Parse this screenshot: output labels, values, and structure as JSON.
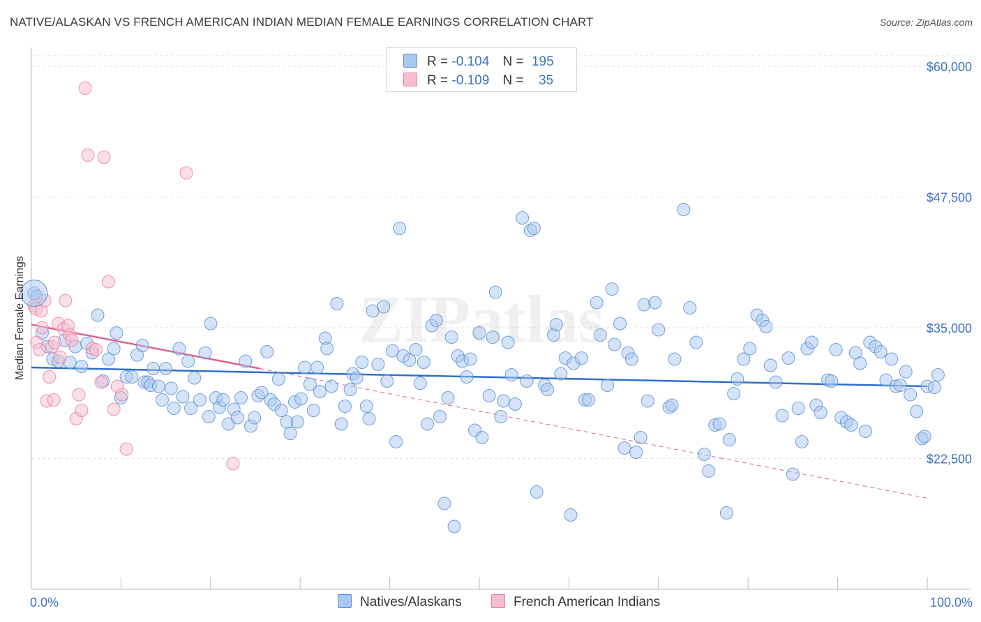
{
  "title": "NATIVE/ALASKAN VS FRENCH AMERICAN INDIAN MEDIAN FEMALE EARNINGS CORRELATION CHART",
  "source": "Source: ZipAtlas.com",
  "watermark": "ZIPatlas",
  "legend": {
    "series1": {
      "r_label": "R =",
      "r_value": "-0.104",
      "n_label": "N =",
      "n_value": "195"
    },
    "series2": {
      "r_label": "R =",
      "r_value": "-0.109",
      "n_label": "N =",
      "n_value": "35"
    }
  },
  "bottom_legend": {
    "series1": "Natives/Alaskans",
    "series2": "French American Indians"
  },
  "colors": {
    "blue_fill": "#a9c8ef",
    "blue_stroke": "#5b8fd6",
    "blue_line": "#2f6fca",
    "pink_fill": "#f6bfd0",
    "pink_stroke": "#e87fa0",
    "pink_line": "#e0608f",
    "tick_text": "#3d72c4",
    "grid": "#e2e2e2"
  },
  "chart_data": {
    "type": "scatter",
    "title": "NATIVE/ALASKAN VS FRENCH AMERICAN INDIAN MEDIAN FEMALE EARNINGS CORRELATION CHART",
    "xlabel": "",
    "ylabel": "Median Female Earnings",
    "xlim": [
      0,
      100
    ],
    "ylim": [
      10000,
      61000
    ],
    "x_tick_labels": [
      "0.0%",
      "100.0%"
    ],
    "y_ticks": [
      22500,
      35000,
      47500,
      60000
    ],
    "y_tick_labels": [
      "$22,500",
      "$35,000",
      "$47,500",
      "$60,000"
    ],
    "series": [
      {
        "name": "Natives/Alaskans",
        "r": -0.104,
        "n": 195,
        "trend": {
          "x": [
            0,
            100
          ],
          "y": [
            31200,
            29400
          ],
          "style": "solid"
        },
        "points": [
          [
            0.3,
            38300
          ],
          [
            0.6,
            38000
          ],
          [
            1.2,
            34500
          ],
          [
            1.8,
            33200
          ],
          [
            2.4,
            32000
          ],
          [
            3.0,
            31800
          ],
          [
            3.7,
            33800
          ],
          [
            4.3,
            31700
          ],
          [
            4.9,
            33200
          ],
          [
            5.6,
            31300
          ],
          [
            6.2,
            33500
          ],
          [
            6.8,
            32600
          ],
          [
            7.4,
            36200
          ],
          [
            8.0,
            29900
          ],
          [
            8.6,
            32000
          ],
          [
            9.2,
            33000
          ],
          [
            9.5,
            34500
          ],
          [
            10.0,
            28300
          ],
          [
            10.6,
            30300
          ],
          [
            11.2,
            30300
          ],
          [
            11.8,
            32400
          ],
          [
            12.4,
            33300
          ],
          [
            12.6,
            29800
          ],
          [
            13.0,
            29800
          ],
          [
            13.3,
            29500
          ],
          [
            13.6,
            31100
          ],
          [
            14.2,
            29400
          ],
          [
            14.6,
            28100
          ],
          [
            15.0,
            31100
          ],
          [
            15.6,
            29200
          ],
          [
            15.9,
            27300
          ],
          [
            16.5,
            33000
          ],
          [
            16.9,
            28400
          ],
          [
            17.5,
            31800
          ],
          [
            17.8,
            27300
          ],
          [
            18.2,
            30200
          ],
          [
            18.8,
            28100
          ],
          [
            19.4,
            32600
          ],
          [
            19.8,
            26500
          ],
          [
            20.0,
            35400
          ],
          [
            20.6,
            28300
          ],
          [
            21.0,
            27400
          ],
          [
            21.4,
            28100
          ],
          [
            22.0,
            25800
          ],
          [
            22.6,
            27200
          ],
          [
            23.0,
            26400
          ],
          [
            23.4,
            28300
          ],
          [
            23.9,
            31800
          ],
          [
            24.5,
            25600
          ],
          [
            24.9,
            26400
          ],
          [
            25.3,
            28500
          ],
          [
            25.7,
            28800
          ],
          [
            26.3,
            32700
          ],
          [
            26.7,
            28100
          ],
          [
            27.1,
            27700
          ],
          [
            27.6,
            30100
          ],
          [
            27.9,
            27100
          ],
          [
            28.5,
            26000
          ],
          [
            28.9,
            24900
          ],
          [
            29.4,
            27900
          ],
          [
            29.7,
            26000
          ],
          [
            30.1,
            28200
          ],
          [
            30.5,
            31200
          ],
          [
            31.1,
            29600
          ],
          [
            31.5,
            27100
          ],
          [
            31.9,
            31200
          ],
          [
            32.2,
            28900
          ],
          [
            32.8,
            34000
          ],
          [
            33.0,
            33000
          ],
          [
            33.5,
            29400
          ],
          [
            34.1,
            37300
          ],
          [
            34.6,
            25800
          ],
          [
            35.0,
            27500
          ],
          [
            35.6,
            29100
          ],
          [
            35.9,
            30600
          ],
          [
            36.3,
            30200
          ],
          [
            36.9,
            31700
          ],
          [
            37.4,
            27500
          ],
          [
            37.7,
            26300
          ],
          [
            38.1,
            36600
          ],
          [
            38.7,
            31500
          ],
          [
            39.3,
            37000
          ],
          [
            39.7,
            29900
          ],
          [
            40.3,
            32800
          ],
          [
            40.7,
            24100
          ],
          [
            41.1,
            44500
          ],
          [
            41.5,
            32300
          ],
          [
            42.2,
            31900
          ],
          [
            42.9,
            32900
          ],
          [
            43.4,
            29700
          ],
          [
            43.8,
            31700
          ],
          [
            44.2,
            25800
          ],
          [
            44.7,
            35200
          ],
          [
            45.2,
            35700
          ],
          [
            45.6,
            26500
          ],
          [
            46.1,
            18200
          ],
          [
            46.5,
            28300
          ],
          [
            46.9,
            34100
          ],
          [
            47.2,
            16000
          ],
          [
            47.6,
            32300
          ],
          [
            48.1,
            31800
          ],
          [
            48.6,
            30300
          ],
          [
            49.0,
            32000
          ],
          [
            49.5,
            25200
          ],
          [
            50.0,
            34500
          ],
          [
            50.3,
            24500
          ],
          [
            51.1,
            28500
          ],
          [
            51.5,
            34100
          ],
          [
            51.8,
            38400
          ],
          [
            52.4,
            26500
          ],
          [
            52.7,
            28000
          ],
          [
            53.2,
            33600
          ],
          [
            53.6,
            30500
          ],
          [
            54.0,
            27700
          ],
          [
            54.8,
            45500
          ],
          [
            55.3,
            29900
          ],
          [
            55.7,
            44300
          ],
          [
            56.1,
            44500
          ],
          [
            56.4,
            19300
          ],
          [
            57.3,
            29500
          ],
          [
            57.6,
            29100
          ],
          [
            58.3,
            34300
          ],
          [
            58.6,
            35300
          ],
          [
            59.1,
            30600
          ],
          [
            59.6,
            32100
          ],
          [
            60.2,
            17100
          ],
          [
            60.5,
            31600
          ],
          [
            61.4,
            32100
          ],
          [
            61.8,
            28100
          ],
          [
            62.2,
            28100
          ],
          [
            63.1,
            37400
          ],
          [
            63.5,
            34300
          ],
          [
            64.3,
            29500
          ],
          [
            64.8,
            38700
          ],
          [
            65.1,
            33400
          ],
          [
            65.7,
            35400
          ],
          [
            66.2,
            23500
          ],
          [
            66.6,
            32600
          ],
          [
            67.0,
            32000
          ],
          [
            67.5,
            23100
          ],
          [
            68.0,
            24500
          ],
          [
            68.4,
            37200
          ],
          [
            68.8,
            28000
          ],
          [
            69.6,
            37400
          ],
          [
            70.0,
            34800
          ],
          [
            71.2,
            27400
          ],
          [
            71.5,
            27600
          ],
          [
            71.8,
            32000
          ],
          [
            72.8,
            46300
          ],
          [
            73.5,
            36900
          ],
          [
            74.2,
            33600
          ],
          [
            75.1,
            22900
          ],
          [
            75.6,
            21300
          ],
          [
            76.3,
            25700
          ],
          [
            76.8,
            25800
          ],
          [
            77.6,
            17300
          ],
          [
            77.9,
            24300
          ],
          [
            78.4,
            28700
          ],
          [
            78.8,
            30100
          ],
          [
            79.5,
            32000
          ],
          [
            80.2,
            33000
          ],
          [
            81.0,
            36200
          ],
          [
            81.6,
            35700
          ],
          [
            82.0,
            35100
          ],
          [
            82.5,
            31400
          ],
          [
            83.1,
            29800
          ],
          [
            83.8,
            26600
          ],
          [
            84.5,
            32100
          ],
          [
            85.0,
            21000
          ],
          [
            85.6,
            27300
          ],
          [
            86.0,
            24100
          ],
          [
            86.6,
            33000
          ],
          [
            87.1,
            33600
          ],
          [
            87.6,
            27600
          ],
          [
            88.1,
            26900
          ],
          [
            88.9,
            30000
          ],
          [
            89.3,
            29900
          ],
          [
            89.8,
            32900
          ],
          [
            90.4,
            26400
          ],
          [
            91.0,
            26000
          ],
          [
            91.5,
            25700
          ],
          [
            92.0,
            32600
          ],
          [
            92.5,
            31600
          ],
          [
            93.1,
            25100
          ],
          [
            93.6,
            33600
          ],
          [
            94.2,
            33200
          ],
          [
            94.8,
            32700
          ],
          [
            95.4,
            30000
          ],
          [
            96.0,
            32000
          ],
          [
            96.5,
            29400
          ],
          [
            97.0,
            29500
          ],
          [
            97.6,
            30800
          ],
          [
            98.1,
            28600
          ],
          [
            98.8,
            27000
          ],
          [
            99.4,
            24400
          ],
          [
            99.7,
            24600
          ],
          [
            100.0,
            29400
          ],
          [
            100.8,
            29300
          ],
          [
            101.2,
            30500
          ]
        ]
      },
      {
        "name": "French American Indians",
        "r": -0.109,
        "n": 35,
        "trend": {
          "x": [
            0,
            25.5
          ],
          "y": [
            35300,
            31100
          ],
          "style": "solid",
          "extended": {
            "x": [
              25.5,
              100
            ],
            "y": [
              31100,
              18700
            ],
            "style": "dashed"
          }
        },
        "points": [
          [
            0.3,
            37100
          ],
          [
            0.5,
            36800
          ],
          [
            0.6,
            33600
          ],
          [
            0.9,
            32900
          ],
          [
            1.1,
            36600
          ],
          [
            1.2,
            35000
          ],
          [
            1.5,
            37600
          ],
          [
            1.7,
            28000
          ],
          [
            2.0,
            30300
          ],
          [
            2.3,
            33200
          ],
          [
            2.5,
            28100
          ],
          [
            2.6,
            33600
          ],
          [
            3.0,
            35400
          ],
          [
            3.2,
            32200
          ],
          [
            3.6,
            34900
          ],
          [
            3.8,
            37600
          ],
          [
            4.1,
            35200
          ],
          [
            4.3,
            34300
          ],
          [
            4.5,
            33800
          ],
          [
            5.0,
            26300
          ],
          [
            5.3,
            28600
          ],
          [
            5.6,
            27100
          ],
          [
            6.0,
            57900
          ],
          [
            6.3,
            51500
          ],
          [
            6.8,
            33000
          ],
          [
            7.2,
            32900
          ],
          [
            7.8,
            29800
          ],
          [
            8.1,
            51300
          ],
          [
            8.6,
            39400
          ],
          [
            9.2,
            27200
          ],
          [
            9.6,
            29400
          ],
          [
            10.1,
            28600
          ],
          [
            10.6,
            23400
          ],
          [
            17.3,
            49800
          ],
          [
            22.5,
            22000
          ]
        ]
      }
    ]
  }
}
